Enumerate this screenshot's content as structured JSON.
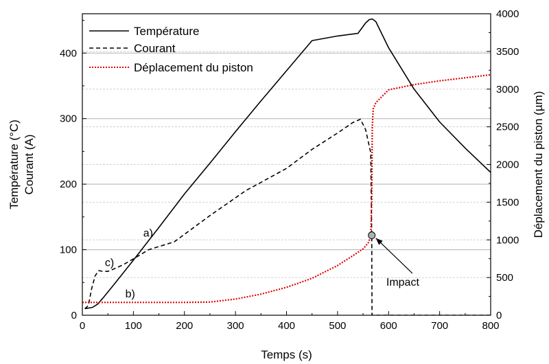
{
  "chart_data": {
    "type": "line",
    "xlabel": "Temps (s)",
    "ylabel_left": [
      "Température (°C)",
      "Courant (A)"
    ],
    "ylabel_right": "Déplacement du piston (µm)",
    "xlim": [
      0,
      800
    ],
    "ylim_left": [
      0,
      460
    ],
    "ylim_right": [
      0,
      4000
    ],
    "xticks": [
      0,
      100,
      200,
      300,
      400,
      500,
      600,
      700,
      800
    ],
    "yticks_left": [
      0,
      100,
      200,
      300,
      400
    ],
    "yticks_right": [
      0,
      500,
      1000,
      1500,
      2000,
      2500,
      3000,
      3500,
      4000
    ],
    "grid": true,
    "legend": "top-left",
    "series": [
      {
        "name": "Température",
        "axis": "left",
        "style": "solid",
        "color": "#000000",
        "x": [
          5,
          20,
          30,
          40,
          60,
          100,
          150,
          200,
          250,
          300,
          350,
          400,
          450,
          500,
          540,
          555,
          562,
          568,
          575,
          600,
          650,
          700,
          750,
          800
        ],
        "y": [
          10,
          12,
          17,
          26,
          45,
          84,
          134,
          185,
          232,
          280,
          327,
          373,
          419,
          426,
          430,
          446,
          451,
          452,
          448,
          408,
          345,
          295,
          255,
          218
        ]
      },
      {
        "name": "Courant",
        "axis": "left",
        "style": "dashed",
        "color": "#000000",
        "x": [
          5,
          12,
          18,
          25,
          32,
          40,
          50,
          60,
          80,
          100,
          130,
          180,
          250,
          320,
          400,
          450,
          500,
          530,
          545,
          555,
          565,
          567,
          567.5,
          600,
          700,
          800
        ],
        "y": [
          10,
          15,
          40,
          60,
          68,
          67,
          67,
          70,
          77,
          86,
          100,
          112,
          152,
          190,
          224,
          253,
          278,
          294,
          299,
          283,
          248,
          120,
          0,
          0,
          0,
          0
        ]
      },
      {
        "name": "Déplacement du piston",
        "axis": "right",
        "style": "dotted",
        "color": "#e00000",
        "x": [
          0,
          50,
          100,
          150,
          200,
          250,
          300,
          350,
          400,
          450,
          500,
          530,
          550,
          560,
          565,
          567,
          568,
          570,
          575,
          600,
          650,
          700,
          750,
          800
        ],
        "y": [
          170,
          170,
          170,
          170,
          170,
          175,
          215,
          280,
          370,
          490,
          660,
          790,
          880,
          960,
          1040,
          1500,
          2500,
          2740,
          2820,
          2990,
          3060,
          3110,
          3150,
          3190
        ]
      }
    ],
    "annotations": [
      {
        "text": "a)",
        "x": 130,
        "y": 120,
        "axis": "left"
      },
      {
        "text": "b)",
        "x": 95,
        "y": 27,
        "axis": "left"
      },
      {
        "text": "c)",
        "x": 55,
        "y": 75,
        "axis": "left"
      },
      {
        "text": "Impact",
        "x": 660,
        "y": 575,
        "axis": "right",
        "marker": {
          "x": 567,
          "y": 1060
        }
      }
    ]
  }
}
